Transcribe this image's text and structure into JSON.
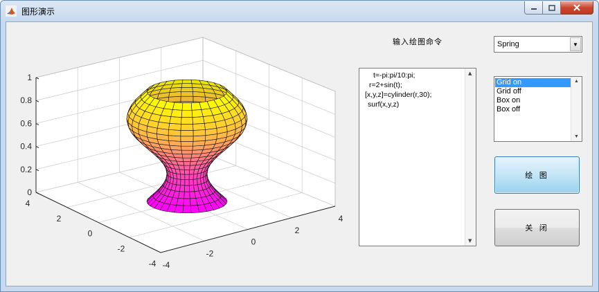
{
  "window": {
    "title": "图形演示",
    "controls": {
      "minimize": "—",
      "maximize": "☐",
      "close": "✕"
    }
  },
  "axes": {
    "z_ticks": [
      "0",
      "0.2",
      "0.4",
      "0.6",
      "0.8",
      "1"
    ],
    "x_ticks": [
      "-4",
      "-2",
      "0",
      "2",
      "4"
    ],
    "y_ticks": [
      "4",
      "2",
      "0",
      "-2",
      "-4"
    ],
    "colormap": "Spring",
    "colors": {
      "bottom": "#ff00ff",
      "top": "#ffff00",
      "grid_line": "#d0d0d0"
    },
    "surface_type": "surf cylinder r=2+sin(t)"
  },
  "command": {
    "label": "输入绘图命令",
    "lines": [
      "t=-pi:pi/10:pi;",
      "r=2+sin(t);",
      "[x,y,z]=cylinder(r,30);",
      "surf(x,y,z)"
    ]
  },
  "colormap_popup": {
    "selected": "Spring"
  },
  "options_list": {
    "items": [
      "Grid on",
      "Grid off",
      "Box on",
      "Box off"
    ],
    "selected_index": 0
  },
  "buttons": {
    "draw_label": "绘 图",
    "close_label": "关 闭"
  }
}
